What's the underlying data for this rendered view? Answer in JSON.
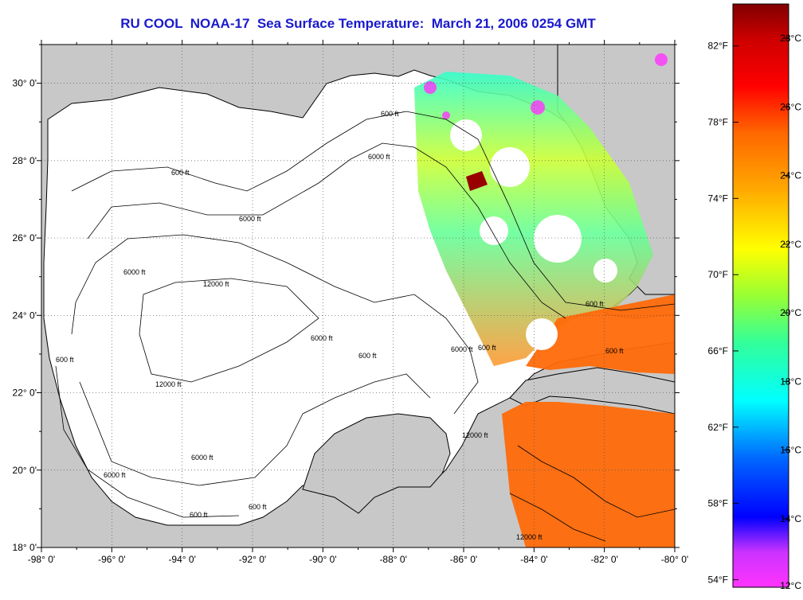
{
  "title": "RU COOL  NOAA-17  Sea Surface Temperature:  March 21, 2006 0254 GMT",
  "map": {
    "lon_ticks": [
      "-98° 0'",
      "-96° 0'",
      "-94° 0'",
      "-92° 0'",
      "-90° 0'",
      "-88° 0'",
      "-86° 0'",
      "-84° 0'",
      "-82° 0'",
      "-80° 0'"
    ],
    "lat_ticks": [
      "30° 0'",
      "28° 0'",
      "26° 0'",
      "24° 0'",
      "22° 0'",
      "20° 0'",
      "18° 0'"
    ],
    "lon_range": [
      -98,
      -80
    ],
    "lat_range": [
      18,
      31
    ],
    "grid": "dotted",
    "contour_labels": [
      "600 ft",
      "600 ft",
      "600 ft",
      "600 ft",
      "600 ft",
      "600 ft",
      "600 ft",
      "600 ft",
      "600 ft",
      "6000 ft",
      "6000 ft",
      "6000 ft",
      "6000 ft",
      "6000 ft",
      "6000 ft",
      "6000 ft",
      "12000 ft",
      "12000 ft",
      "12000 ft",
      "12000 ft"
    ],
    "colors": {
      "land": "#c8c8c8",
      "ocean_nodata": "#ffffff",
      "grid": "#555555"
    }
  },
  "colorbar": {
    "celsius_labels": [
      "28°C",
      "26°C",
      "24°C",
      "22°C",
      "20°C",
      "18°C",
      "16°C",
      "14°C",
      "12°C"
    ],
    "fahrenheit_labels": [
      "82°F",
      "78°F",
      "74°F",
      "70°F",
      "66°F",
      "62°F",
      "58°F",
      "54°F"
    ],
    "range_celsius": [
      12,
      29
    ],
    "stops": [
      "#ff33ff",
      "#9933ff",
      "#0000ff",
      "#0099ff",
      "#00ffff",
      "#33ff99",
      "#99ff33",
      "#ffff00",
      "#ffaa00",
      "#ff6600",
      "#ff0000",
      "#cc0000",
      "#800000"
    ]
  }
}
